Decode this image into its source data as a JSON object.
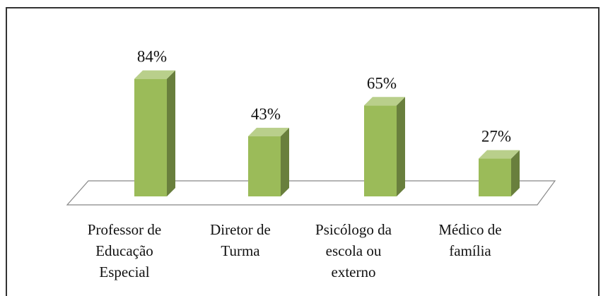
{
  "chart_data": {
    "type": "bar3d",
    "categories": [
      "Professor de Educação Especial",
      "Diretor de Turma",
      "Psicólogo da escola ou externo",
      "Médico de família"
    ],
    "values": [
      84,
      43,
      65,
      27
    ],
    "value_labels": [
      "84%",
      "43%",
      "65%",
      "27%"
    ],
    "color": "#9bbb59"
  }
}
